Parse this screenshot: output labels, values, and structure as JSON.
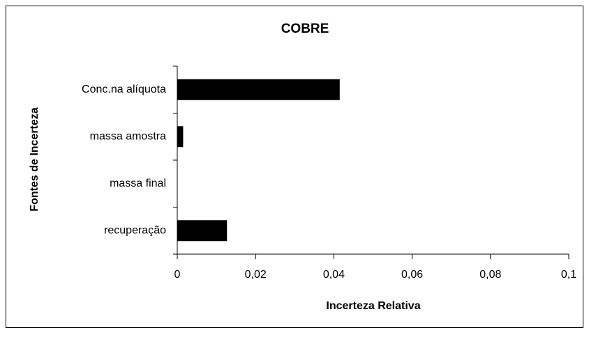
{
  "chart_data": {
    "type": "bar",
    "orientation": "horizontal",
    "title": "COBRE",
    "x_label": "Incerteza Relativa",
    "y_label": "Fontes de Incerteza",
    "categories": [
      "Conc.na alíquota",
      "massa amostra",
      "massa final",
      "recuperação"
    ],
    "values": [
      0.0415,
      0.0015,
      0,
      0.0127
    ],
    "color": "#000000",
    "xlim": [
      0,
      0.1
    ],
    "xticks": [
      0,
      {
        "value": 0.02,
        "label": "0,02"
      },
      {
        "value": 0.04,
        "label": "0,04"
      },
      {
        "value": 0.06,
        "label": "0,06"
      },
      {
        "value": 0.08,
        "label": "0,08"
      },
      {
        "value": 0.1,
        "label": "0,1"
      }
    ],
    "grid": false
  }
}
